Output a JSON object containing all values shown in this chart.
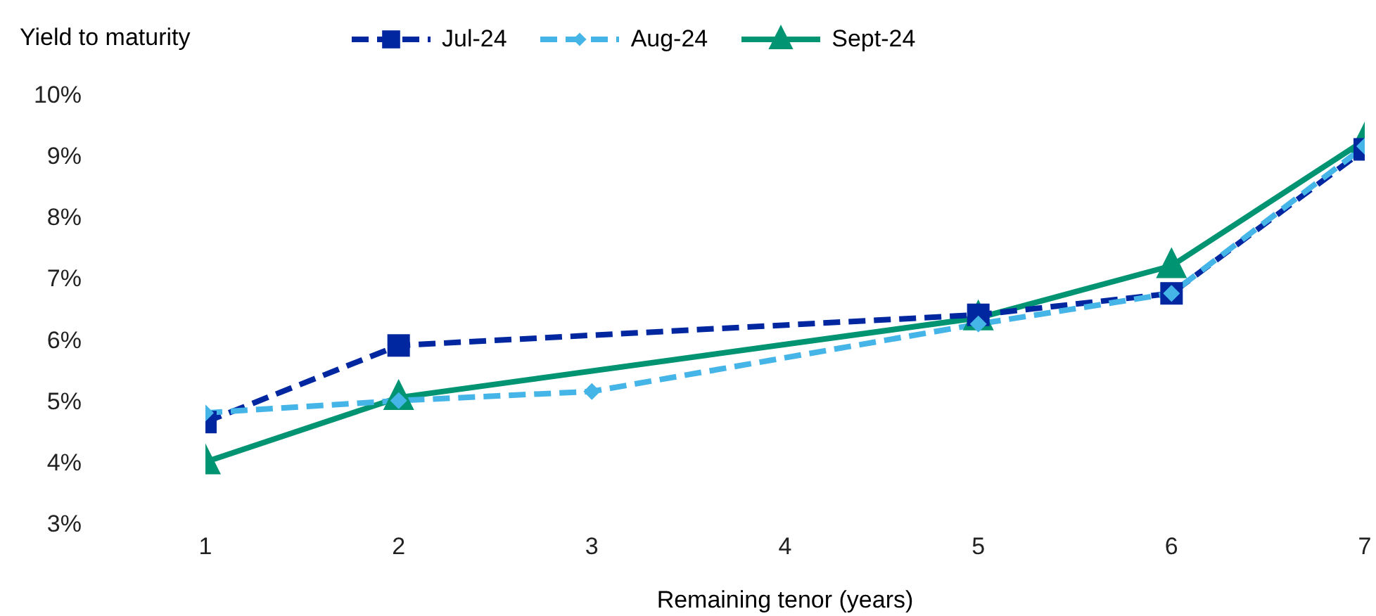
{
  "chart_data": {
    "type": "line",
    "ylabel": "Yield to maturity",
    "xlabel": "Remaining tenor (years)",
    "xlim": [
      1,
      7
    ],
    "xticks": [
      1,
      2,
      3,
      4,
      5,
      6,
      7
    ],
    "ylim": [
      3,
      10
    ],
    "yticks": [
      {
        "value": 3,
        "label": "3%"
      },
      {
        "value": 4,
        "label": "4%"
      },
      {
        "value": 5,
        "label": "5%"
      },
      {
        "value": 6,
        "label": "6%"
      },
      {
        "value": 7,
        "label": "7%"
      },
      {
        "value": 8,
        "label": "8%"
      },
      {
        "value": 9,
        "label": "9%"
      },
      {
        "value": 10,
        "label": "10%"
      }
    ],
    "grid": false,
    "legend": "top",
    "series": [
      {
        "name": "Jul-24",
        "color": "#0027a0",
        "marker": "square",
        "line_style": "dashed",
        "x": [
          1,
          2,
          5,
          6,
          7
        ],
        "values": [
          4.65,
          5.9,
          6.4,
          6.75,
          9.1
        ]
      },
      {
        "name": "Aug-24",
        "color": "#45b5e8",
        "marker": "diamond",
        "line_style": "dashed",
        "x": [
          1,
          2,
          3,
          5,
          6,
          7
        ],
        "values": [
          4.8,
          5.0,
          5.15,
          6.25,
          6.75,
          9.15
        ]
      },
      {
        "name": "Sept-24",
        "color": "#009473",
        "marker": "triangle",
        "line_style": "solid",
        "x": [
          1,
          2,
          5,
          6,
          7
        ],
        "values": [
          4.0,
          5.05,
          6.35,
          7.2,
          9.25
        ]
      }
    ]
  }
}
